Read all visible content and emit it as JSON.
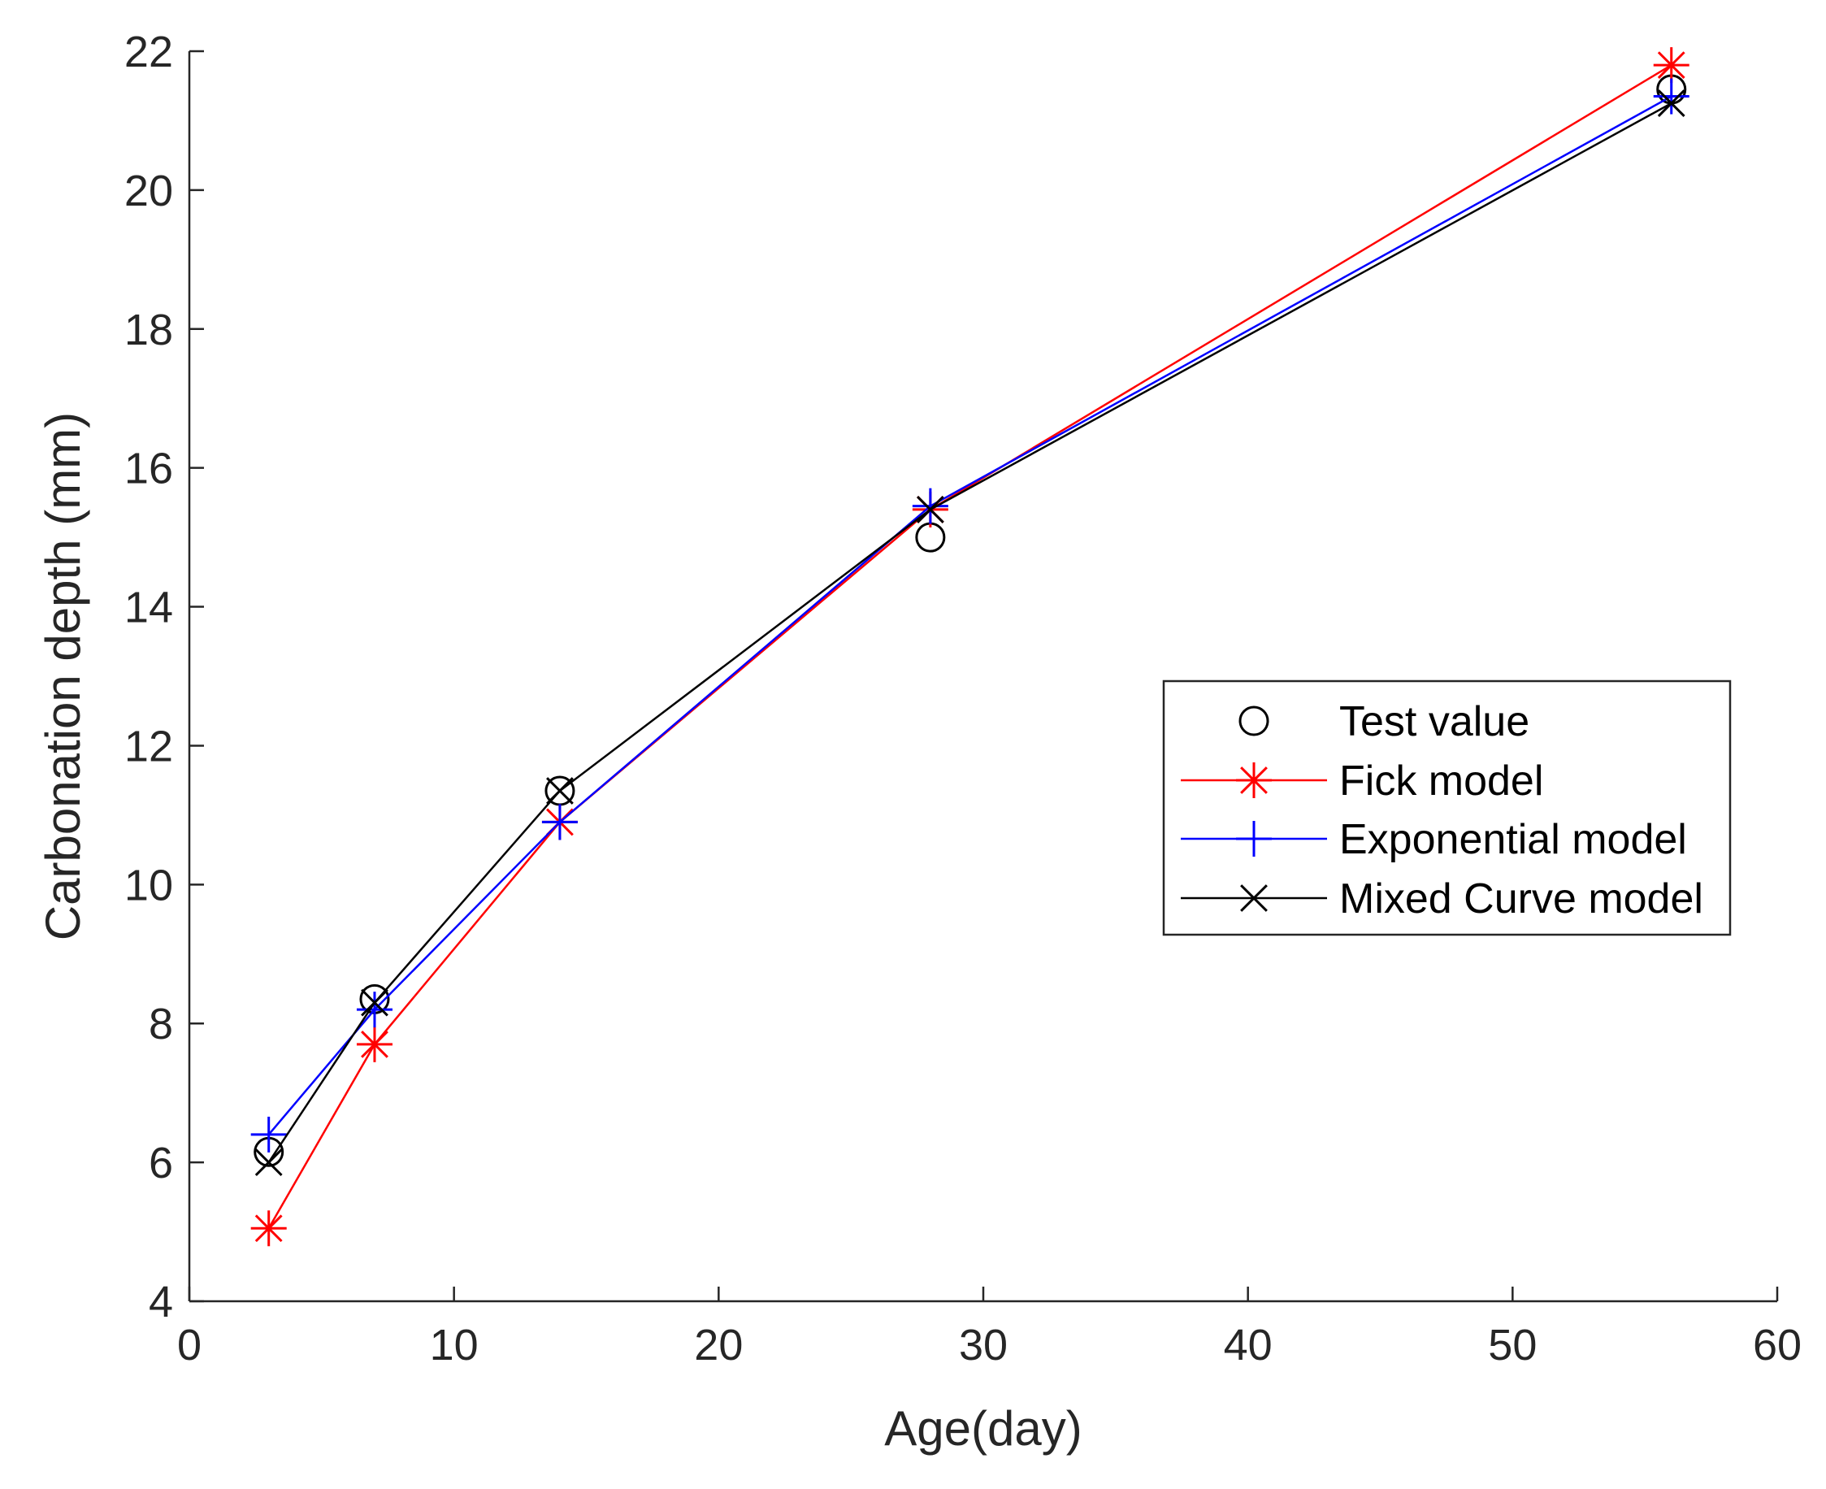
{
  "chart_data": {
    "type": "line",
    "title": "",
    "xlabel": "Age(day)",
    "ylabel": "Carbonation depth (mm)",
    "xlim": [
      0,
      60
    ],
    "ylim": [
      4,
      22
    ],
    "xticks": [
      0,
      10,
      20,
      30,
      40,
      50,
      60
    ],
    "yticks": [
      4,
      6,
      8,
      10,
      12,
      14,
      16,
      18,
      20,
      22
    ],
    "grid": false,
    "legend_position": "middle-right",
    "x": [
      3,
      7,
      14,
      28,
      56
    ],
    "series": [
      {
        "name": "Test value",
        "marker": "circle",
        "line": false,
        "color": "#000000",
        "values": [
          6.15,
          8.35,
          11.35,
          15.0,
          21.45
        ]
      },
      {
        "name": "Fick model",
        "marker": "asterisk",
        "line": true,
        "color": "#ff0000",
        "values": [
          5.05,
          7.7,
          10.9,
          15.4,
          21.8
        ]
      },
      {
        "name": "Exponential model",
        "marker": "plus",
        "line": true,
        "color": "#0000ff",
        "values": [
          6.4,
          8.2,
          10.9,
          15.45,
          21.35
        ]
      },
      {
        "name": "Mixed Curve model",
        "marker": "x",
        "line": true,
        "color": "#000000",
        "values": [
          6.0,
          8.3,
          11.35,
          15.4,
          21.25
        ]
      }
    ]
  }
}
